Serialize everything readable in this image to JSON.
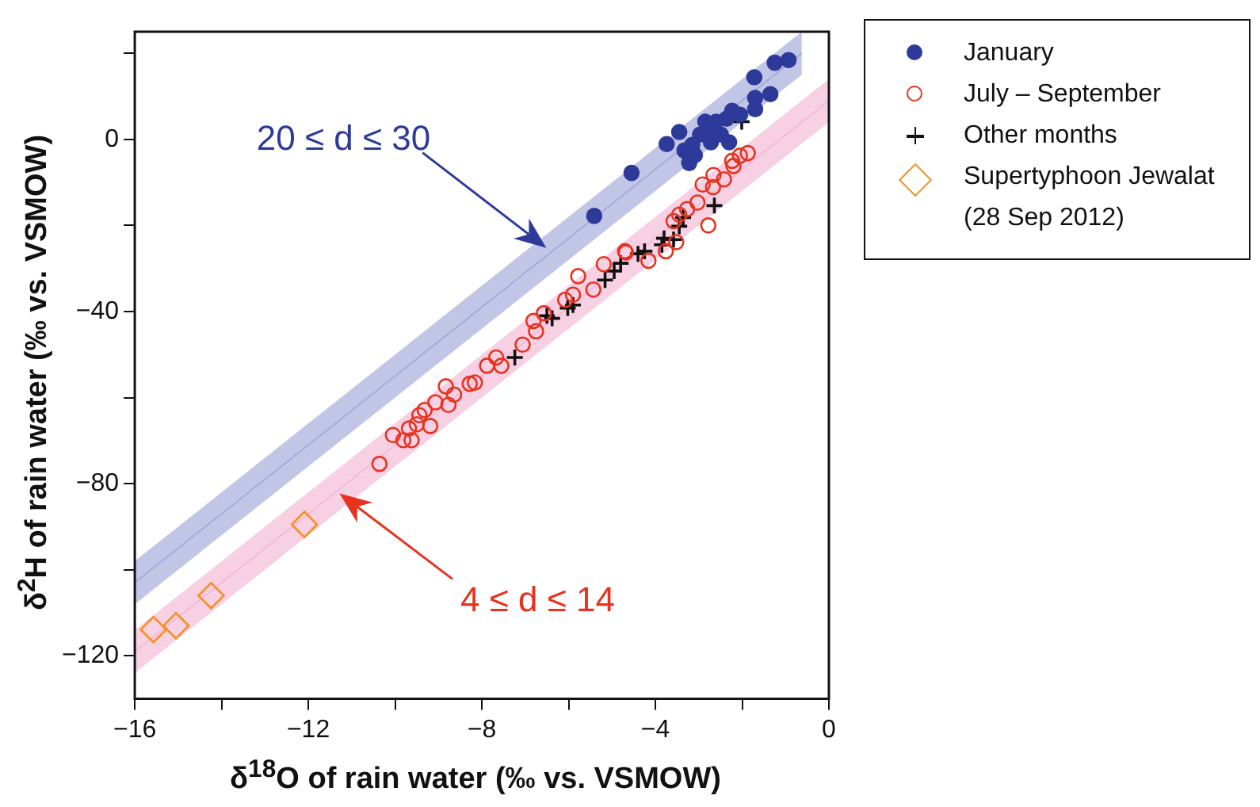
{
  "chart_data": {
    "type": "scatter",
    "xlabel": "δ$^{18}$O of rain water (‰ vs. VSMOW)",
    "ylabel": "δ$^{2}$H of rain water (‰ vs. VSMOW)",
    "xlim": [
      -16,
      0
    ],
    "ylim": [
      -130,
      25
    ],
    "xticks": [
      {
        "value": -16,
        "label": "−16"
      },
      {
        "value": -14,
        "label": null
      },
      {
        "value": -12,
        "label": "−12"
      },
      {
        "value": -10,
        "label": null
      },
      {
        "value": -8,
        "label": "−8"
      },
      {
        "value": -6,
        "label": null
      },
      {
        "value": -4,
        "label": "−4"
      },
      {
        "value": -2,
        "label": null
      },
      0
    ],
    "yticks": [
      {
        "value": -120,
        "label": "−120"
      },
      {
        "value": -100,
        "label": null
      },
      {
        "value": -80,
        "label": "−80"
      },
      {
        "value": -60,
        "label": null
      },
      {
        "value": -40,
        "label": "−40"
      },
      {
        "value": -20,
        "label": null
      },
      0,
      {
        "value": 20,
        "label": null
      }
    ],
    "grid": false,
    "legend": "top right",
    "annotations": [
      "20 ≤ d ≤ 30",
      "4 ≤ d ≤ 14"
    ],
    "series": [
      {
        "type": "line",
        "color": "#8c95d0",
        "x": [
          -16,
          -0.625
        ],
        "values": [
          -103,
          20
        ],
        "lower": [
          -108,
          15
        ],
        "upper": [
          -98,
          25
        ]
      },
      {
        "type": "line",
        "color": "#f2a6cc",
        "x": [
          -16,
          0
        ],
        "values": [
          -119,
          9
        ],
        "lower": [
          -124,
          4
        ],
        "upper": [
          -114,
          14
        ]
      },
      {
        "name": "January",
        "color": "#2e3a9a",
        "marker": "circle",
        "x": [
          -0.93,
          -1.25,
          -1.72,
          -1.35,
          -1.7,
          -1.7,
          -2.05,
          -2.23,
          -2.36,
          -2.6,
          -2.85,
          -2.78,
          -2.97,
          -3.45,
          -3.74,
          -3.33,
          -3.22,
          -3.09,
          -2.72,
          -2.3,
          -2.49,
          -3.15,
          -4.55,
          -5.41
        ],
        "values": [
          18.4,
          17.8,
          14.4,
          10.5,
          9.6,
          7,
          5.7,
          6.6,
          4.8,
          4.1,
          4.1,
          2.3,
          1.1,
          1.7,
          -1.1,
          -2.6,
          -5.5,
          -3.7,
          -0.7,
          -0.7,
          1.1,
          -1.3,
          -7.8,
          -17.8
        ]
      },
      {
        "name": "July – September",
        "color": "#e8321e",
        "marker": "circle",
        "x": [
          -1.87,
          -2.05,
          -2.23,
          -2.2,
          -2.42,
          -2.66,
          -2.91,
          -2.67,
          -2.78,
          -3.03,
          -3.27,
          -3.45,
          -3.58,
          -3.52,
          -3.76,
          -4.16,
          -4.7,
          -5.19,
          -5.78,
          -5.43,
          -6.08,
          -4.68,
          -5.9,
          -6.57,
          -6.81,
          -6.75,
          -7.06,
          -7.67,
          -7.55,
          -7.88,
          -8.28,
          -8.16,
          -8.83,
          -8.64,
          -9.07,
          -8.77,
          -9.32,
          -9.44,
          -9.19,
          -9.5,
          -9.68,
          -10.05,
          -9.81,
          -9.62,
          -10.36
        ],
        "values": [
          -3.2,
          -3.8,
          -5,
          -6.2,
          -9.3,
          -8.3,
          -10.5,
          -11.1,
          -20,
          -14.7,
          -16.2,
          -17.5,
          -19,
          -23.9,
          -26,
          -28.2,
          -26,
          -29,
          -31.8,
          -34.9,
          -37.3,
          -26.3,
          -36.1,
          -40.4,
          -42.2,
          -44.6,
          -47.7,
          -50.7,
          -52.6,
          -52.6,
          -56.8,
          -56.5,
          -57.4,
          -59.3,
          -61.1,
          -61.7,
          -62.9,
          -64.1,
          -66.6,
          -66.2,
          -67.2,
          -68.7,
          -69.9,
          -69.9,
          -75.4
        ]
      },
      {
        "name": "Other months",
        "color": "#111111",
        "marker": "cross",
        "x": [
          -2.01,
          -2.64,
          -3.36,
          -3.45,
          -3.58,
          -3.8,
          -3.85,
          -4.25,
          -4.4,
          -4.8,
          -4.95,
          -5.16,
          -5.9,
          -6.02,
          -6.38,
          -6.5,
          -7.24
        ],
        "values": [
          4.1,
          -15.4,
          -18.2,
          -20.2,
          -23.3,
          -23,
          -24.5,
          -26,
          -26.6,
          -28.8,
          -30.6,
          -32.7,
          -38.5,
          -39.2,
          -41.6,
          -41,
          -50.7
        ]
      },
      {
        "name": "Supertyphoon Jewalat\n(28 Sep 2012)",
        "color": "#f39020",
        "marker": "diamond",
        "x": [
          -12.09,
          -14.24,
          -15.05,
          -15.57
        ],
        "values": [
          -89.5,
          -106,
          -113,
          -113.9
        ]
      }
    ]
  }
}
